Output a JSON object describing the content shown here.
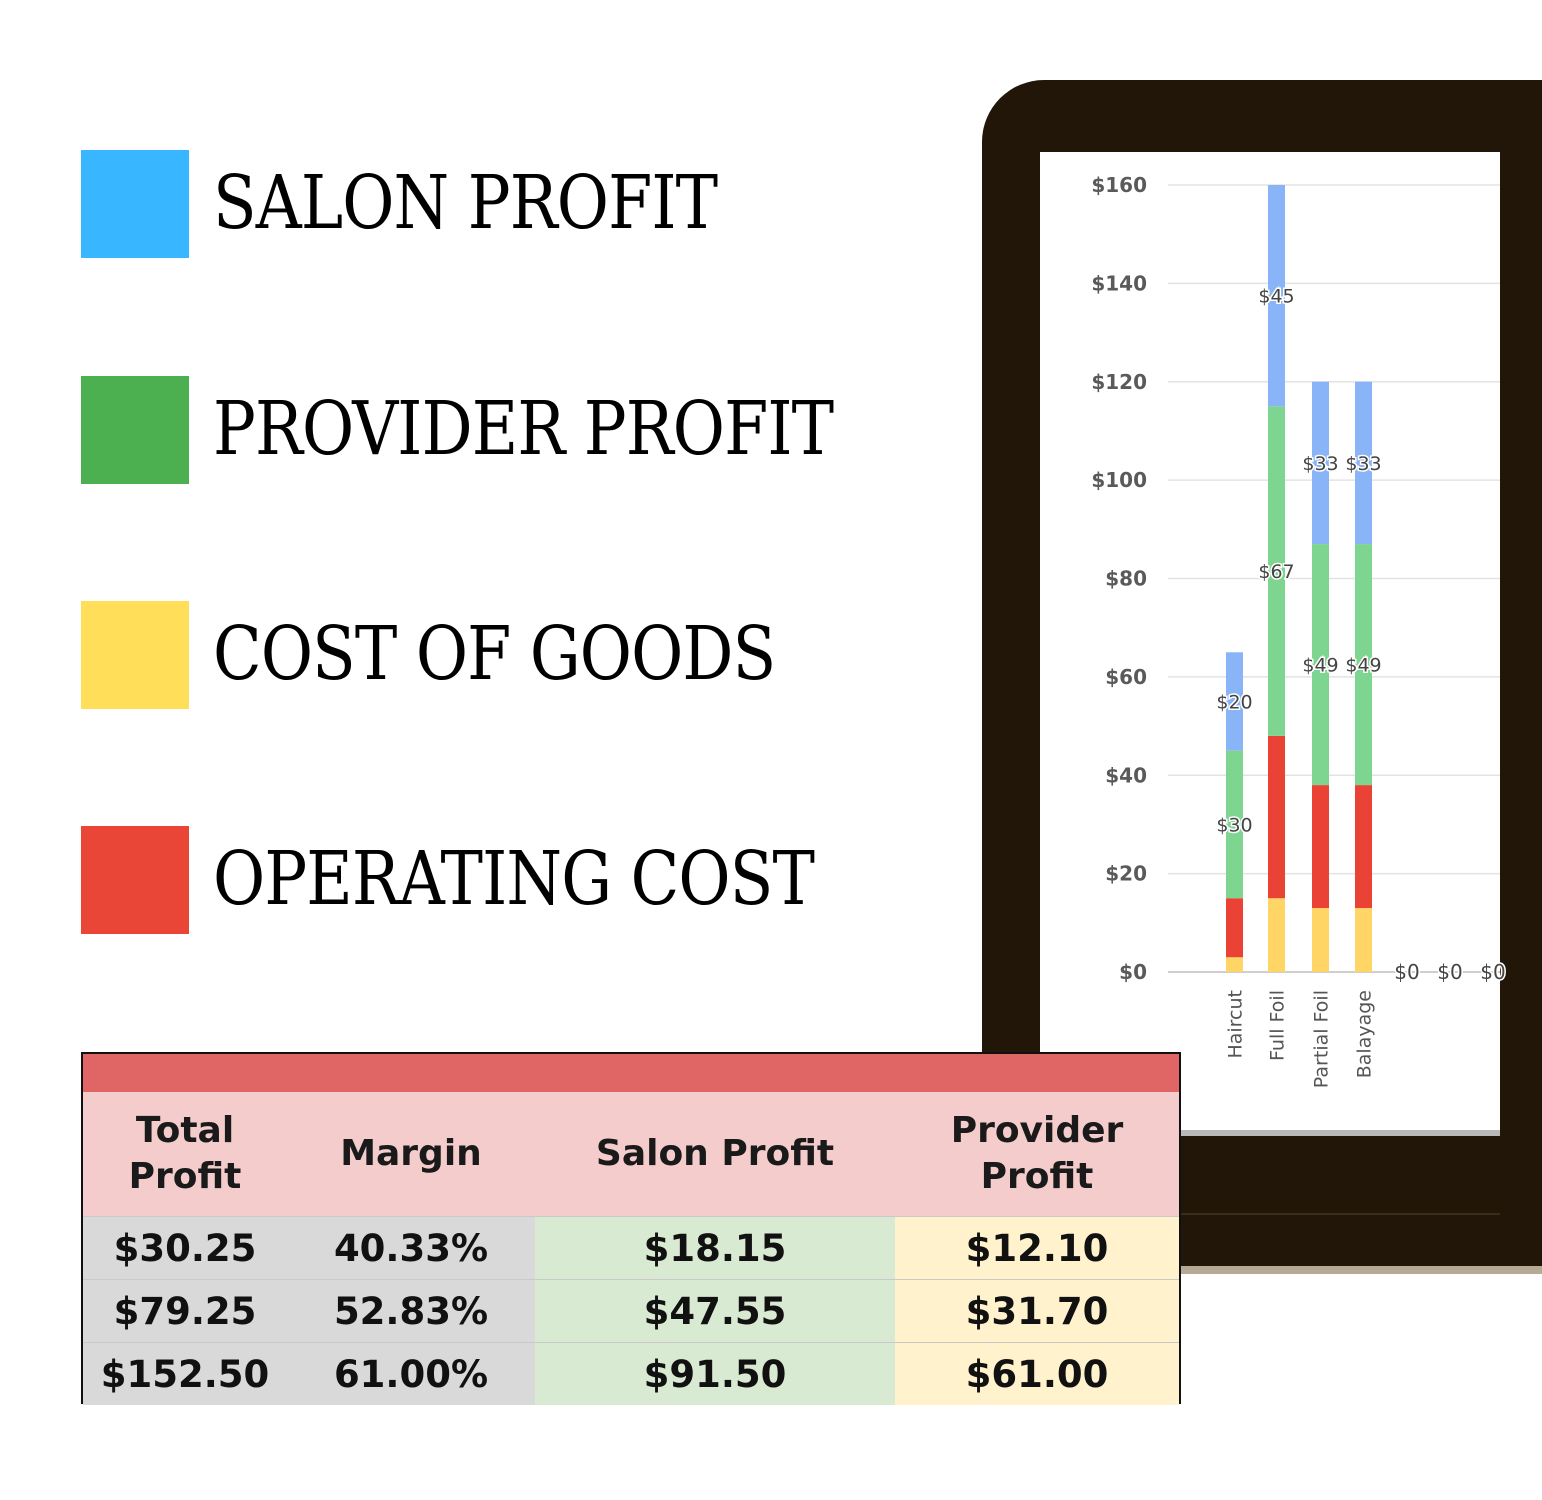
{
  "legend": [
    {
      "label": "SALON PROFIT",
      "color": "#38b6ff"
    },
    {
      "label": "PROVIDER PROFIT",
      "color": "#4caf50"
    },
    {
      "label": "COST OF GOODS",
      "color": "#ffde59"
    },
    {
      "label": "OPERATING COST",
      "color": "#e94637"
    }
  ],
  "chart_data": {
    "type": "bar",
    "stacked": true,
    "categories": [
      "Haircut",
      "Full Foil",
      "Partial Foil",
      "Balayage"
    ],
    "series": [
      {
        "name": "",
        "color": "#ffd666",
        "values": [
          3,
          15,
          13,
          13
        ]
      },
      {
        "name": "",
        "color": "#ea4335",
        "values": [
          12,
          33,
          25,
          25
        ]
      },
      {
        "name": "",
        "color": "#7ed58f",
        "values": [
          30,
          67,
          49,
          49
        ]
      },
      {
        "name": "",
        "color": "#8ab4f8",
        "values": [
          20,
          45,
          33,
          33
        ]
      }
    ],
    "data_labels": [
      {
        "series": 2,
        "labels": [
          "$30",
          "$67",
          "$49",
          "$49"
        ]
      },
      {
        "series": 3,
        "labels": [
          "$20",
          "$45",
          "$33",
          "$33"
        ]
      }
    ],
    "zero_labels": [
      "$0",
      "$0",
      "$0"
    ],
    "yticks": [
      "$0",
      "$20",
      "$40",
      "$60",
      "$80",
      "$100",
      "$120",
      "$140",
      "$160"
    ],
    "ylim": [
      0,
      160
    ],
    "grid": true,
    "xlabel": "",
    "ylabel": ""
  },
  "table": {
    "headers": [
      [
        "Total",
        "Profit"
      ],
      [
        "Margin"
      ],
      [
        "Salon Profit"
      ],
      [
        "Provider",
        "Profit"
      ]
    ],
    "rows": [
      [
        "$30.25",
        "40.33%",
        "$18.15",
        "$12.10"
      ],
      [
        "$79.25",
        "52.83%",
        "$47.55",
        "$31.70"
      ],
      [
        "$152.50",
        "61.00%",
        "$91.50",
        "$61.00"
      ]
    ]
  }
}
